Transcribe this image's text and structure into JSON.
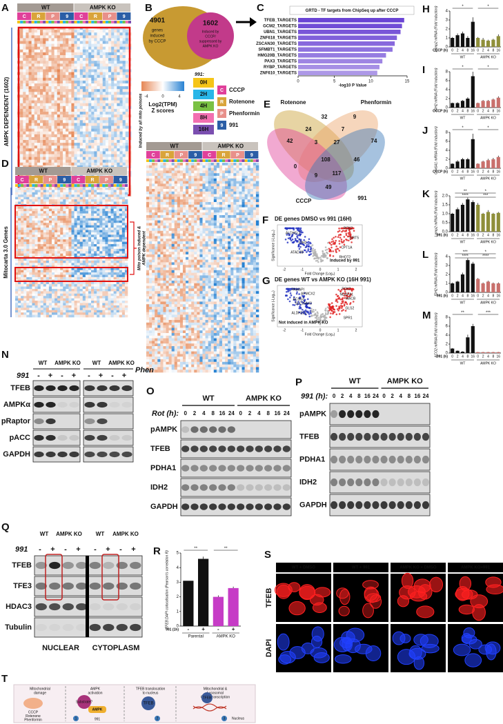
{
  "panels": {
    "A": {
      "label": "A",
      "groups": [
        "WT",
        "AMPK KO"
      ],
      "columns": [
        "C",
        "R",
        "P",
        "9"
      ],
      "side_label": "AMPK DEPENDENT (1602)",
      "note": "Induced by all mito poisons"
    },
    "B": {
      "label": "B",
      "outer_number": 4901,
      "outer_text": [
        "genes",
        "induced",
        "by CCCP"
      ],
      "inner_number": 1602,
      "inner_text": [
        "Induced by",
        "CCCP/",
        "suppressed by",
        "AMPK KO"
      ]
    },
    "legend": {
      "colorbar_title": [
        "Log2(TPM)",
        "Z scores"
      ],
      "colorbar_ticks": [
        -4,
        0,
        4
      ],
      "time_title": "991:",
      "times": [
        "0H",
        "2H",
        "4H",
        "8H",
        "16H"
      ],
      "treatments": [
        {
          "key": "C",
          "name": "CCCP"
        },
        {
          "key": "R",
          "name": "Rotenone"
        },
        {
          "key": "P",
          "name": "Phenformin"
        },
        {
          "key": "9",
          "name": "991"
        }
      ]
    },
    "C": {
      "type": "bar",
      "label": "C",
      "title": "GRTD - TF targets from ChipSeq up after CCCP",
      "categories": [
        "TFEB_TARGETS",
        "GCM2_TARGETS",
        "UBN1_TARGETS",
        "ZNF618_TARGETS",
        "ZSCAN30_TARGETS",
        "SFMBT1_TARGETS",
        "HMG20B_TARGETS",
        "PAX3_TARGETS",
        "RYBP_TARGETS",
        "ZNF610_TARGETS"
      ],
      "values": [
        14.6,
        14.3,
        14.1,
        13.6,
        13.3,
        13.0,
        12.1,
        11.6,
        11.2,
        10.9
      ],
      "color": "#6a44d4",
      "xlabel": "-log10 P Value",
      "xlim": [
        0,
        15
      ],
      "xticks": [
        0,
        5,
        10,
        15
      ]
    },
    "D": {
      "label": "D",
      "groups": [
        "WT",
        "AMPK KO"
      ],
      "columns": [
        "C",
        "R",
        "P",
        "9"
      ],
      "side_label": "Mitocarta 3.0 Genes",
      "note": [
        "Mito poison induced &",
        "AMPK dependent"
      ]
    },
    "big_heatmap": {
      "groups": [
        "WT",
        "AMPK KO"
      ],
      "columns": [
        "C",
        "R",
        "P",
        "9"
      ]
    },
    "E": {
      "label": "E",
      "sets": [
        {
          "name": "Rotenone",
          "color": "#c9a032"
        },
        {
          "name": "Phenformin",
          "color": "#eba36a"
        },
        {
          "name": "CCCP",
          "color": "#e0409a"
        },
        {
          "name": "991",
          "color": "#3a78b8"
        }
      ],
      "counts": [
        32,
        9,
        42,
        24,
        7,
        74,
        3,
        27,
        108,
        0,
        46,
        117,
        9,
        49
      ]
    },
    "F": {
      "label": "F",
      "title": "DE genes DMSO vs 991 (16H)",
      "note": "Induced by 991",
      "xlabel": "Fold Change (Log₂)",
      "ylabel": "Significance (-Log₁₀)",
      "xtick_labels": [
        "-2",
        "-1",
        "0",
        "1",
        "2"
      ],
      "genes": [
        "PCK2",
        "ALDH1L2",
        "SIRT5",
        "IDH2",
        "CPT1A",
        "ATAD3B",
        "RHOT2"
      ]
    },
    "G": {
      "label": "G",
      "title": "DE genes WT vs AMPK KO (16H 991)",
      "note": "Not induced in AMPK KO",
      "xlabel": "Fold Change (Log₂)",
      "ylabel": "Significance (-Log₁₀)",
      "xtick_labels": [
        "-2",
        "-1",
        "0",
        "1",
        "2"
      ],
      "genes": [
        "PCK2",
        "APMCX2",
        "MACB",
        "SLC25A43",
        "GLS2",
        "ALDH1L1",
        "SPR1",
        "PAMAPI",
        "NDUFA1",
        "ACSS3"
      ]
    },
    "H": {
      "type": "bar",
      "label": "H",
      "ylabel": "Lamp2 mRNA (Fold induction)",
      "treatment": "CCCP (h)",
      "groups": [
        "WT",
        "AMPK KO"
      ],
      "categories": [
        "0",
        "2",
        "4",
        "8",
        "16",
        "0",
        "2",
        "4",
        "8",
        "16"
      ],
      "values": [
        1.0,
        1.3,
        1.5,
        1.0,
        2.8,
        1.0,
        0.8,
        0.7,
        0.8,
        1.2
      ],
      "errors": [
        0.1,
        0.2,
        0.2,
        0.2,
        0.5,
        0.1,
        0.2,
        0.1,
        0.1,
        0.2
      ],
      "colors": [
        "#111",
        "#111",
        "#111",
        "#111",
        "#111",
        "#8f8f3a",
        "#8f8f3a",
        "#8f8f3a",
        "#8f8f3a",
        "#8f8f3a"
      ],
      "ylim": [
        0,
        4
      ],
      "yticks": [
        0,
        1,
        2,
        3,
        4
      ],
      "annotations": [
        "*",
        "*"
      ]
    },
    "I": {
      "type": "bar",
      "label": "I",
      "ylabel": "IDH2 mRNA (Fold induction)",
      "treatment": "CCCP (h)",
      "groups": [
        "WT",
        "AMPK KO"
      ],
      "categories": [
        "0",
        "2",
        "4",
        "8",
        "16",
        "0",
        "2",
        "4",
        "8",
        "16"
      ],
      "values": [
        1.0,
        1.0,
        1.5,
        2.0,
        7.0,
        1.0,
        1.5,
        1.5,
        1.8,
        2.2
      ],
      "errors": [
        0.1,
        0.2,
        0.2,
        0.3,
        1.0,
        0.1,
        0.2,
        0.2,
        0.2,
        0.3
      ],
      "colors": [
        "#111",
        "#111",
        "#111",
        "#111",
        "#111",
        "#c9706c",
        "#c9706c",
        "#c9706c",
        "#c9706c",
        "#c9706c"
      ],
      "ylim": [
        0,
        8
      ],
      "yticks": [
        0,
        2,
        4,
        6,
        8
      ],
      "annotations": [
        "*",
        "*"
      ]
    },
    "J": {
      "type": "bar",
      "label": "J",
      "ylabel": "Cox6A1 mRNA (Fold induction)",
      "treatment": "CCCP (h)",
      "groups": [
        "WT",
        "AMPK KO"
      ],
      "categories": [
        "0",
        "2",
        "4",
        "8",
        "16",
        "0",
        "2",
        "4",
        "8",
        "16"
      ],
      "values": [
        1.0,
        1.5,
        2.0,
        2.0,
        6.5,
        1.0,
        1.5,
        1.8,
        2.0,
        2.5
      ],
      "errors": [
        0.1,
        0.3,
        0.3,
        0.3,
        1.2,
        0.1,
        0.2,
        0.3,
        0.3,
        0.3
      ],
      "colors": [
        "#111",
        "#111",
        "#111",
        "#111",
        "#111",
        "#c9706c",
        "#c9706c",
        "#c9706c",
        "#c9706c",
        "#c9706c"
      ],
      "ylim": [
        0,
        8
      ],
      "yticks": [
        0,
        2,
        4,
        6,
        8
      ],
      "annotations": [
        "*",
        "*"
      ]
    },
    "K": {
      "type": "bar",
      "label": "K",
      "ylabel": "Lamp2 mRNA (Fold induction)",
      "treatment": "991 (h)",
      "groups": [
        "WT",
        "AMPK KO"
      ],
      "categories": [
        "0",
        "2",
        "4",
        "8",
        "16",
        "0",
        "2",
        "4",
        "8",
        "16"
      ],
      "values": [
        1.0,
        1.25,
        1.5,
        1.8,
        1.65,
        1.5,
        1.0,
        1.1,
        1.0,
        1.05
      ],
      "errors": [
        0.05,
        0.1,
        0.1,
        0.1,
        0.1,
        0.1,
        0.05,
        0.1,
        0.05,
        0.05
      ],
      "colors": [
        "#111",
        "#111",
        "#111",
        "#111",
        "#111",
        "#8f8f3a",
        "#8f8f3a",
        "#8f8f3a",
        "#8f8f3a",
        "#8f8f3a"
      ],
      "ylim": [
        0,
        2
      ],
      "yticks": [
        {
          "value": 0,
          "label": "0.0"
        },
        {
          "value": 0.5,
          "label": "0.5"
        },
        {
          "value": 1,
          "label": "1.0"
        },
        {
          "value": 1.5,
          "label": "1.5"
        },
        {
          "value": 2,
          "label": "2.0"
        }
      ],
      "annotations": [
        "**",
        "****",
        "*",
        "***"
      ]
    },
    "L": {
      "type": "bar",
      "label": "L",
      "ylabel": "IDH2 mRNA (Fold induction)",
      "treatment": "991 (h)",
      "groups": [
        "WT",
        "AMPK KO"
      ],
      "categories": [
        "0",
        "2",
        "4",
        "8",
        "16",
        "0",
        "2",
        "4",
        "8",
        "16"
      ],
      "values": [
        1.0,
        1.2,
        2.0,
        3.6,
        3.2,
        1.5,
        1.0,
        1.2,
        1.0,
        1.0
      ],
      "errors": [
        0.1,
        0.1,
        0.2,
        0.2,
        0.2,
        0.1,
        0.1,
        0.1,
        0.1,
        0.1
      ],
      "colors": [
        "#111",
        "#111",
        "#111",
        "#111",
        "#111",
        "#c9706c",
        "#c9706c",
        "#c9706c",
        "#c9706c",
        "#c9706c"
      ],
      "ylim": [
        0,
        4
      ],
      "yticks": [
        0,
        1,
        2,
        3,
        4
      ],
      "annotations": [
        "***",
        "****",
        "*",
        "****"
      ]
    },
    "M": {
      "type": "bar",
      "label": "M",
      "ylabel": "ACO2 mRNA (Fold induction)",
      "treatment": "991 (h)",
      "groups": [
        "WT",
        "AMPK KO"
      ],
      "categories": [
        "0",
        "2",
        "4",
        "8",
        "16",
        "0",
        "2",
        "4",
        "8",
        "16"
      ],
      "values": [
        1.0,
        0.5,
        0.3,
        3.5,
        6.0,
        0.2,
        0.2,
        0.2,
        0.2,
        0.2
      ],
      "errors": [
        0.1,
        0.1,
        0.1,
        0.6,
        0.5,
        0.05,
        0.05,
        0.05,
        0.05,
        0.05
      ],
      "colors": [
        "#111",
        "#111",
        "#111",
        "#111",
        "#111",
        "#c9706c",
        "#c9706c",
        "#c9706c",
        "#c9706c",
        "#c9706c"
      ],
      "ylim": [
        0,
        8
      ],
      "yticks": [
        0,
        2,
        4,
        6,
        8
      ],
      "annotations": [
        "**",
        "***"
      ]
    },
    "N": {
      "label": "N",
      "groups": [
        "WT",
        "AMPK KO",
        "WT",
        "AMPK KO"
      ],
      "treatments": [
        "991",
        "Phen"
      ],
      "signs": [
        "-",
        "+",
        "-",
        "+",
        "-",
        "+",
        "-",
        "+"
      ],
      "rows": [
        "TFEB",
        "AMPKα",
        "pRaptor",
        "pACC",
        "GAPDH"
      ]
    },
    "O": {
      "label": "O",
      "treatment": "Rot (h):",
      "groups": [
        "WT",
        "AMPK KO"
      ],
      "times": [
        "0",
        "2",
        "4",
        "8",
        "16",
        "24",
        "0",
        "2",
        "4",
        "8",
        "16",
        "24"
      ],
      "rows": [
        "pAMPK",
        "TFEB",
        "PDHA1",
        "IDH2",
        "GAPDH"
      ]
    },
    "P": {
      "label": "P",
      "treatment": "991 (h):",
      "groups": [
        "WT",
        "AMPK KO"
      ],
      "times": [
        "0",
        "2",
        "4",
        "8",
        "16",
        "24",
        "0",
        "2",
        "4",
        "8",
        "16",
        "24"
      ],
      "rows": [
        "pAMPK",
        "TFEB",
        "PDHA1",
        "IDH2",
        "GAPDH"
      ]
    },
    "Q": {
      "label": "Q",
      "groups": [
        "WT",
        "AMPK KO",
        "WT",
        "AMPK KO"
      ],
      "treatment": "991",
      "signs": [
        "-",
        "+",
        "-",
        "+",
        "-",
        "+",
        "-",
        "+"
      ],
      "rows": [
        "TFEB",
        "TFE3",
        "HDAC3",
        "Tubulin"
      ],
      "fractions": [
        "NUCLEAR",
        "CYTOPLASM"
      ]
    },
    "R": {
      "type": "bar",
      "label": "R",
      "ylabel": "TFEB:DAPI colocalisation (Pearson's correlation R)",
      "treatment": "991 (1h)",
      "groups": [
        "Parental",
        "AMPK KO"
      ],
      "categories": [
        "-",
        "+",
        "-",
        "+"
      ],
      "values": [
        3.1,
        4.6,
        2.0,
        2.6
      ],
      "errors": [
        0.0,
        0.15,
        0.1,
        0.1
      ],
      "colors": [
        "#111",
        "#111",
        "#c63cc6",
        "#c63cc6"
      ],
      "ylim": [
        0,
        5
      ],
      "yticks": [
        0,
        1,
        2,
        3,
        4,
        5
      ],
      "annotations": [
        "**",
        "**"
      ]
    },
    "S": {
      "label": "S",
      "conditions": [
        "WT + DMSO",
        "WT + 991",
        "AMPK KO + DMSO",
        "AMPK KO+991"
      ],
      "rows": [
        "TFEB",
        "DAPI"
      ]
    },
    "T": {
      "label": "T",
      "stages": [
        [
          "Mitochondrial",
          "damage"
        ],
        [
          "AMPK",
          "activation"
        ],
        [
          "TFEB translocation",
          "to nucleus"
        ],
        [
          "Mitochondrial &",
          "Lysosomal",
          "Gene Transcription"
        ]
      ],
      "inducers": [
        "CCCP",
        "Rotenone",
        "Phenformin"
      ],
      "drug": "991",
      "substrate": "Substrate?",
      "kinase": "AMPK",
      "factor": "TFEB",
      "compartment": "Nucleus",
      "steps": [
        "1",
        "2",
        "3"
      ]
    }
  }
}
